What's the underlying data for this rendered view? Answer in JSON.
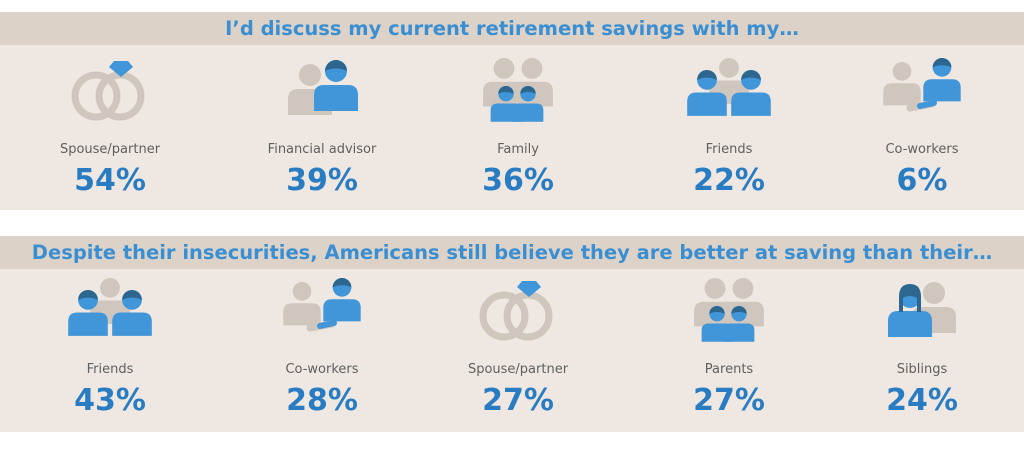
{
  "colors": {
    "accent": "#3a8fd3",
    "value": "#2a7cc2",
    "icon_blue": "#4196d9",
    "icon_blue_dark": "#2d6790",
    "icon_gray": "#cfc6bd",
    "panel_bg": "#efe8e2",
    "title_bg": "#ddd2c8"
  },
  "chart_data": [
    {
      "type": "bar",
      "title": "I’d discuss my current retirement savings with my…",
      "categories": [
        "Spouse/partner",
        "Financial advisor",
        "Family",
        "Friends",
        "Co-workers"
      ],
      "values": [
        54,
        39,
        36,
        22,
        6
      ],
      "value_labels": [
        "54%",
        "39%",
        "36%",
        "22%",
        "6%"
      ],
      "icons": [
        "rings-icon",
        "advisor-couple-icon",
        "family-icon",
        "friends-group-icon",
        "handshake-icon"
      ],
      "unit": "%"
    },
    {
      "type": "bar",
      "title": "Despite their insecurities, Americans still believe they are better at saving than their…",
      "categories": [
        "Friends",
        "Co-workers",
        "Spouse/partner",
        "Parents",
        "Siblings"
      ],
      "values": [
        43,
        28,
        27,
        27,
        24
      ],
      "value_labels": [
        "43%",
        "28%",
        "27%",
        "27%",
        "24%"
      ],
      "icons": [
        "friends-group-icon",
        "handshake-icon",
        "rings-icon",
        "parents-family-icon",
        "siblings-icon"
      ],
      "unit": "%"
    }
  ]
}
